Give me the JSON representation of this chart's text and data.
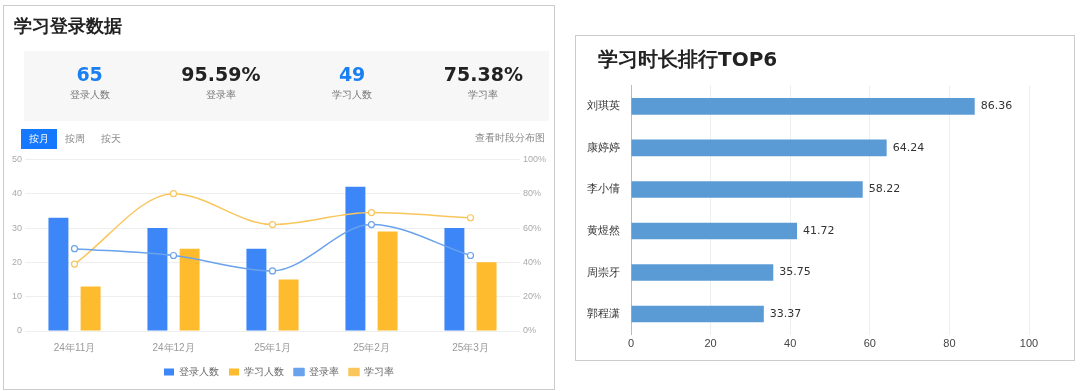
{
  "chart_data": [
    {
      "type": "other",
      "title": "学习登录数据",
      "annotations": [
        "65",
        "登录人数",
        "95.59%",
        "登录率",
        "49",
        "学习人数",
        "75.38%",
        "学习率"
      ]
    },
    {
      "type": "bar",
      "categories": [
        "24年11月",
        "24年12月",
        "25年1月",
        "25年2月",
        "25年3月"
      ],
      "series": [
        {
          "name": "登录人数",
          "color": "#3d86f7",
          "values": [
            33,
            30,
            24,
            42,
            30
          ]
        },
        {
          "name": "学习人数",
          "color": "#fdbb2d",
          "values": [
            13,
            24,
            15,
            29,
            20
          ]
        },
        {
          "name": "登录率",
          "color": "#6aa2ec",
          "type": "line",
          "axis": "y2",
          "values": [
            48,
            44,
            35,
            62,
            44
          ]
        },
        {
          "name": "学习率",
          "color": "#f9c65c",
          "type": "line",
          "axis": "y2",
          "values": [
            39,
            80,
            62,
            69,
            66
          ]
        }
      ],
      "ylim": [
        0,
        50
      ],
      "yticks": [
        0,
        10,
        20,
        30,
        40,
        50
      ],
      "y2lim": [
        0,
        100
      ],
      "y2ticks": [
        {
          "value": 0,
          "label": "0%"
        },
        {
          "value": 20,
          "label": "20%"
        },
        {
          "value": 40,
          "label": "40%"
        },
        {
          "value": 60,
          "label": "60%"
        },
        {
          "value": 80,
          "label": "80%"
        },
        {
          "value": 100,
          "label": "100%"
        }
      ],
      "grid": "y",
      "legend": "bottom",
      "marker": "circle",
      "annotations": [
        "按月",
        "按周",
        "按天",
        "查看时段分布图"
      ]
    },
    {
      "type": "bar",
      "orientation": "horizontal",
      "title": "学习时长排行TOP6",
      "categories": [
        "刘琪英",
        "康婷婷",
        "李小倩",
        "黄煜然",
        "周崇牙",
        "郭程潇"
      ],
      "values": [
        86.36,
        64.24,
        58.22,
        41.72,
        35.75,
        33.37
      ],
      "color": "#5b9bd5",
      "xlim": [
        0,
        100
      ],
      "xticks": [
        0,
        20,
        40,
        60,
        80,
        100
      ],
      "grid": "x",
      "data_labels": true
    }
  ]
}
